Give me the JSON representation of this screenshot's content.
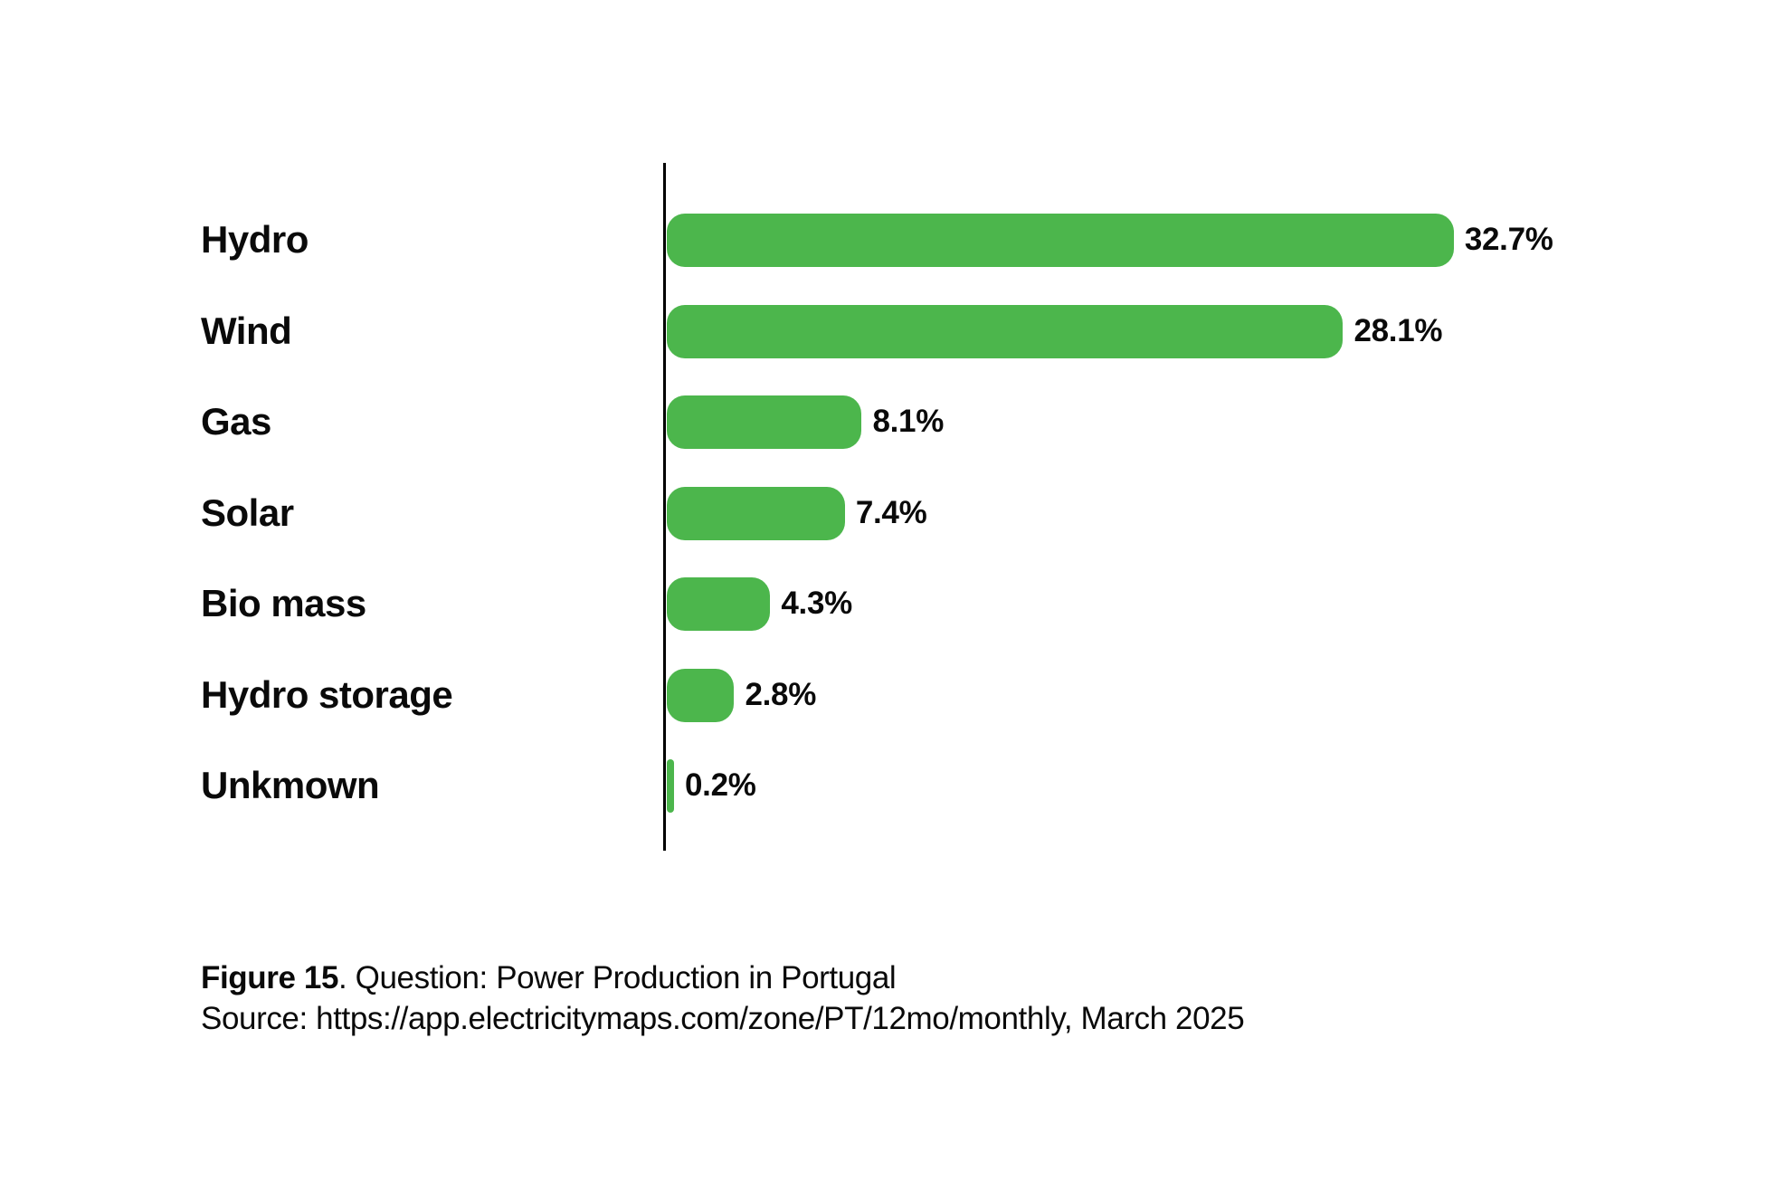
{
  "chart_data": {
    "type": "bar",
    "orientation": "horizontal",
    "title": "",
    "xlabel": "",
    "ylabel": "",
    "categories": [
      "Hydro",
      "Wind",
      "Gas",
      "Solar",
      "Bio mass",
      "Hydro storage",
      "Unkmown"
    ],
    "values": [
      32.7,
      28.1,
      8.1,
      7.4,
      4.3,
      2.8,
      0.2
    ],
    "value_labels": [
      "32.7%",
      "28.1%",
      "8.1%",
      "7.4%",
      "4.3%",
      "2.8%",
      "0.2%"
    ],
    "xlim": [
      0,
      33
    ],
    "grid": false,
    "legend": false,
    "bar_color": "#4CB64C",
    "axis_color": "#000000",
    "text_color": "#0a0a0a",
    "background_color": "#ffffff"
  },
  "caption": {
    "figure_label": "Figure 15",
    "figure_text": ". Question: Power Production in Portugal",
    "source_text": "Source: https://app.electricitymaps.com/zone/PT/12mo/monthly, March 2025"
  }
}
